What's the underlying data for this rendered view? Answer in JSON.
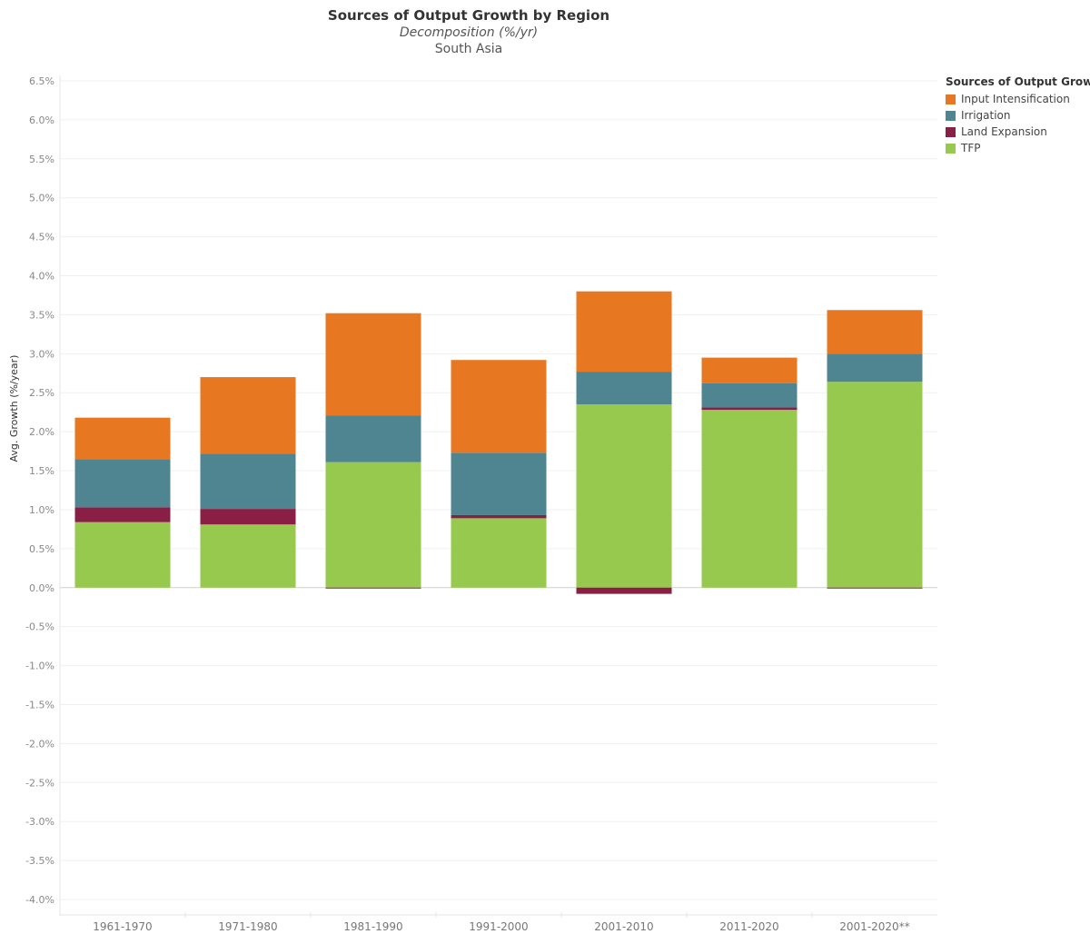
{
  "header": {
    "title": "Sources of Output Growth by Region",
    "subtitle": "Decomposition (%/yr)",
    "region": "South Asia"
  },
  "legend": {
    "title": "Sources of Output Growth",
    "items": [
      {
        "label": "Input Intensification",
        "color": "#e87722"
      },
      {
        "label": "Irrigation",
        "color": "#4f8590"
      },
      {
        "label": "Land Expansion",
        "color": "#8a1f45"
      },
      {
        "label": "TFP",
        "color": "#96c94e"
      }
    ]
  },
  "chart_data": {
    "type": "bar",
    "stacked": true,
    "ylabel": "Avg. Growth (%/year)",
    "ylim": [
      -4.0,
      6.5
    ],
    "y_tick_step": 0.5,
    "y_tick_format": "percent_1dp",
    "categories": [
      "1961-1970",
      "1971-1980",
      "1981-1990",
      "1991-2000",
      "2001-2010",
      "2011-2020",
      "2001-2020**"
    ],
    "series": [
      {
        "name": "TFP",
        "color": "#96c94e",
        "values": [
          0.84,
          0.81,
          1.61,
          0.89,
          2.35,
          2.28,
          2.64
        ]
      },
      {
        "name": "Land Expansion",
        "color": "#8a1f45",
        "values": [
          0.19,
          0.2,
          -0.01,
          0.04,
          -0.08,
          0.03,
          -0.01
        ]
      },
      {
        "name": "Irrigation",
        "color": "#4f8590",
        "values": [
          0.62,
          0.71,
          0.6,
          0.8,
          0.42,
          0.31,
          0.36
        ]
      },
      {
        "name": "Input Intensification",
        "color": "#e87722",
        "values": [
          0.53,
          0.98,
          1.31,
          1.19,
          1.03,
          0.33,
          0.56
        ]
      }
    ]
  }
}
